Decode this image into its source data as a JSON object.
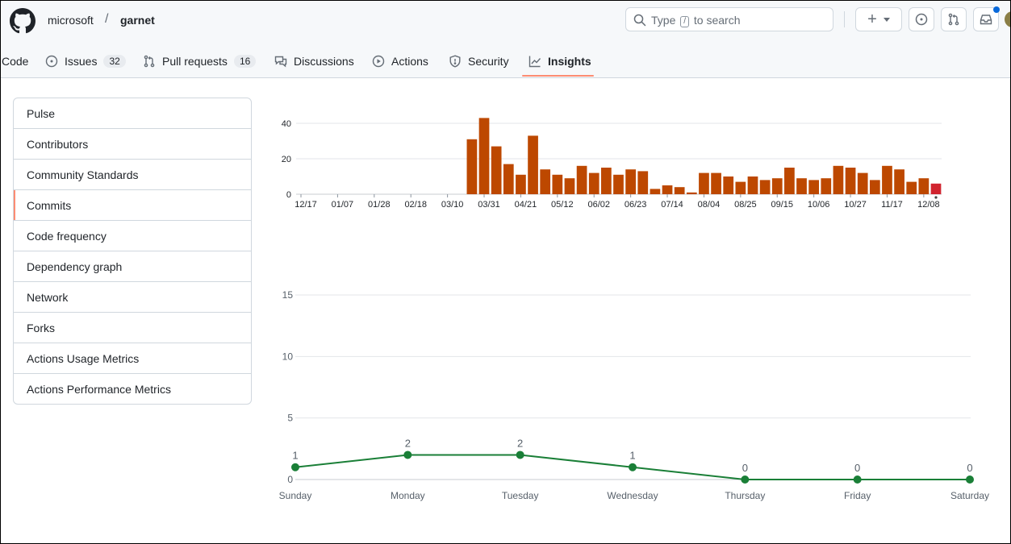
{
  "header": {
    "owner": "microsoft",
    "separator": "/",
    "repo": "garnet",
    "search": {
      "prefix": "Type",
      "key": "/",
      "suffix": "to search"
    },
    "create_label": "+"
  },
  "tabs": [
    {
      "label": "Code",
      "icon": "code-icon"
    },
    {
      "label": "Issues",
      "count": "32",
      "icon": "issue-icon"
    },
    {
      "label": "Pull requests",
      "count": "16",
      "icon": "pull-request-icon"
    },
    {
      "label": "Discussions",
      "icon": "discussion-icon"
    },
    {
      "label": "Actions",
      "icon": "play-icon"
    },
    {
      "label": "Security",
      "icon": "shield-icon"
    },
    {
      "label": "Insights",
      "icon": "graph-icon",
      "active": true
    }
  ],
  "sidebar": {
    "items": [
      {
        "label": "Pulse"
      },
      {
        "label": "Contributors"
      },
      {
        "label": "Community Standards"
      },
      {
        "label": "Commits",
        "selected": true
      },
      {
        "label": "Code frequency"
      },
      {
        "label": "Dependency graph"
      },
      {
        "label": "Network"
      },
      {
        "label": "Forks"
      },
      {
        "label": "Actions Usage Metrics"
      },
      {
        "label": "Actions Performance Metrics"
      }
    ]
  },
  "chart_data": [
    {
      "type": "bar",
      "ylim": [
        0,
        40
      ],
      "yticks": [
        "0",
        "20",
        "40"
      ],
      "x_tick_labels": [
        "12/17",
        "01/07",
        "01/28",
        "02/18",
        "03/10",
        "03/31",
        "04/21",
        "05/12",
        "06/02",
        "06/23",
        "07/14",
        "08/04",
        "08/25",
        "09/15",
        "10/06",
        "10/27",
        "11/17",
        "12/08"
      ],
      "values": [
        0,
        0,
        0,
        0,
        0,
        0,
        0,
        0,
        0,
        0,
        0,
        0,
        0,
        0,
        31,
        43,
        27,
        17,
        11,
        33,
        14,
        11,
        9,
        16,
        12,
        15,
        11,
        14,
        13,
        3,
        5,
        4,
        1,
        12,
        12,
        10,
        7,
        10,
        8,
        9,
        15,
        9,
        8,
        9,
        16,
        15,
        12,
        8,
        16,
        14,
        7,
        9,
        6
      ],
      "colors": {
        "bar": "#bd4800",
        "highlight": "#d1242f"
      },
      "highlight_index": 52
    },
    {
      "type": "line",
      "categories": [
        "Sunday",
        "Monday",
        "Tuesday",
        "Wednesday",
        "Thursday",
        "Friday",
        "Saturday"
      ],
      "values": [
        1,
        2,
        2,
        1,
        0,
        0,
        0
      ],
      "yticks": [
        "0",
        "5",
        "10",
        "15"
      ],
      "ylim": [
        0,
        17.5
      ],
      "colors": {
        "line": "#1a7f37"
      }
    }
  ]
}
